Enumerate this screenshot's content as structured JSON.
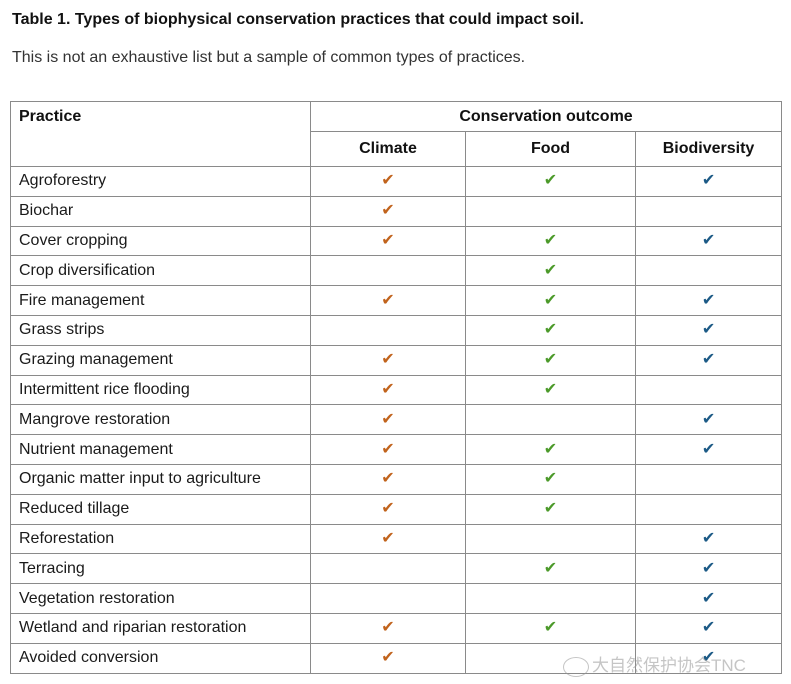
{
  "title": "Table 1. Types of biophysical conservation practices that could impact soil.",
  "subtitle": "This is not an exhaustive list but a sample of common types of practices.",
  "table": {
    "practice_header": "Practice",
    "outcome_header": "Conservation outcome",
    "columns": [
      "Climate",
      "Food",
      "Biodiversity"
    ],
    "check_symbol": "✔",
    "colors": {
      "climate": "#c1631c",
      "food": "#4c9a2a",
      "biodiversity": "#1c5a86"
    },
    "rows": [
      {
        "name": "Agroforestry",
        "climate": true,
        "food": true,
        "biodiversity": true
      },
      {
        "name": "Biochar",
        "climate": true,
        "food": false,
        "biodiversity": false
      },
      {
        "name": "Cover cropping",
        "climate": true,
        "food": true,
        "biodiversity": true
      },
      {
        "name": "Crop diversification",
        "climate": false,
        "food": true,
        "biodiversity": false
      },
      {
        "name": "Fire management",
        "climate": true,
        "food": true,
        "biodiversity": true
      },
      {
        "name": "Grass strips",
        "climate": false,
        "food": true,
        "biodiversity": true
      },
      {
        "name": "Grazing management",
        "climate": true,
        "food": true,
        "biodiversity": true
      },
      {
        "name": "Intermittent rice flooding",
        "climate": true,
        "food": true,
        "biodiversity": false
      },
      {
        "name": "Mangrove restoration",
        "climate": true,
        "food": false,
        "biodiversity": true
      },
      {
        "name": "Nutrient management",
        "climate": true,
        "food": true,
        "biodiversity": true
      },
      {
        "name": "Organic matter input to agriculture",
        "climate": true,
        "food": true,
        "biodiversity": false
      },
      {
        "name": "Reduced tillage",
        "climate": true,
        "food": true,
        "biodiversity": false
      },
      {
        "name": "Reforestation",
        "climate": true,
        "food": false,
        "biodiversity": true
      },
      {
        "name": "Terracing",
        "climate": false,
        "food": true,
        "biodiversity": true
      },
      {
        "name": "Vegetation restoration",
        "climate": false,
        "food": false,
        "biodiversity": true
      },
      {
        "name": "Wetland and riparian restoration",
        "climate": true,
        "food": true,
        "biodiversity": true
      },
      {
        "name": "Avoided conversion",
        "climate": true,
        "food": false,
        "biodiversity": true
      }
    ]
  },
  "watermark": "大自然保护协会TNC"
}
